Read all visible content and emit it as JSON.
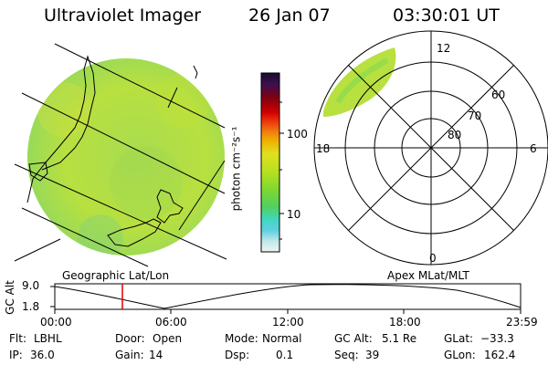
{
  "header": {
    "instrument": "Ultraviolet Imager",
    "date": "26 Jan 07",
    "time": "03:30:01 UT"
  },
  "colorbar": {
    "unit_label": "photon cm⁻²s⁻¹",
    "ticks": [
      "100",
      "10"
    ],
    "colors": [
      "#1a0a2a",
      "#3a1050",
      "#800010",
      "#d00000",
      "#f04010",
      "#f08010",
      "#f0b000",
      "#c8d820",
      "#a0e020",
      "#70d830",
      "#40d8b0",
      "#40d0e0",
      "#b0e8e8",
      "#e8f4f4"
    ]
  },
  "polar_plot": {
    "mlt_labels": {
      "top": "12",
      "left": "18",
      "right": "6",
      "bottom": "0"
    },
    "lat_labels": [
      "60",
      "70",
      "80"
    ],
    "title": "Apex MLat/MLT"
  },
  "map": {
    "title": "Geographic Lat/Lon",
    "fill_color": "#b8e040"
  },
  "timeline": {
    "ylabel": "GC Alt",
    "y_ticks": [
      "9.0",
      "1.8"
    ],
    "x_ticks": [
      "00:00",
      "06:00",
      "12:00",
      "18:00",
      "23:59"
    ],
    "current_marker_color": "#e00000"
  },
  "footer": {
    "row1": [
      {
        "key": "Flt:",
        "value": "LBHL"
      },
      {
        "key": "Door:",
        "value": "Open"
      },
      {
        "key": "Mode:",
        "value": "Normal"
      },
      {
        "key": "GC Alt:",
        "value": "5.1 Re"
      },
      {
        "key": "GLat:",
        "value": "−33.3"
      }
    ],
    "row2": [
      {
        "key": "IP:",
        "value": "36.0"
      },
      {
        "key": "Gain:",
        "value": "14"
      },
      {
        "key": "Dsp:",
        "value": "0.1"
      },
      {
        "key": "Seq:",
        "value": "39"
      },
      {
        "key": "GLon:",
        "value": "162.4"
      }
    ]
  }
}
